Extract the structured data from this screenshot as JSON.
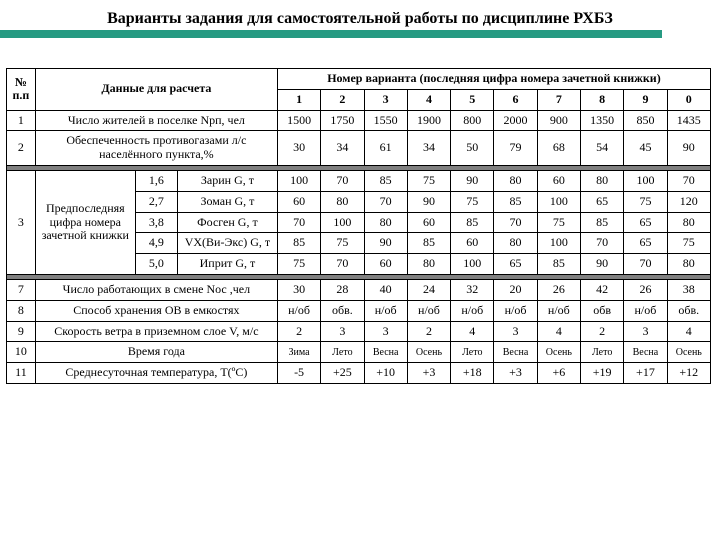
{
  "title": "Варианты задания для самостоятельной работы по дисциплине РХБЗ",
  "h": {
    "npp": "№ п.п",
    "data": "Данные для расчета",
    "variant": "Номер варианта (последняя цифра номера зачетной книжки)",
    "cols": [
      "1",
      "2",
      "3",
      "4",
      "5",
      "6",
      "7",
      "8",
      "9",
      "0"
    ]
  },
  "r1": {
    "n": "1",
    "label": "Число жителей в поселке Nрп, чел",
    "v": [
      "1500",
      "1750",
      "1550",
      "1900",
      "800",
      "2000",
      "900",
      "1350",
      "850",
      "1435"
    ]
  },
  "r2": {
    "n": "2",
    "label": "Обеспеченность противогазами л/с населённого пункта,%",
    "v": [
      "30",
      "34",
      "61",
      "34",
      "50",
      "79",
      "68",
      "54",
      "45",
      "90"
    ]
  },
  "r3": {
    "n": "3",
    "side": "Предпоследняя цифра номера зачетной книжки",
    "rows": [
      {
        "d": "1,6",
        "agent": "Зарин G, т",
        "v": [
          "100",
          "70",
          "85",
          "75",
          "90",
          "80",
          "60",
          "80",
          "100",
          "70"
        ]
      },
      {
        "d": "2,7",
        "agent": "Зоман G, т",
        "v": [
          "60",
          "80",
          "70",
          "90",
          "75",
          "85",
          "100",
          "65",
          "75",
          "120"
        ]
      },
      {
        "d": "3,8",
        "agent": "Фосген G, т",
        "v": [
          "70",
          "100",
          "80",
          "60",
          "85",
          "70",
          "75",
          "85",
          "65",
          "80"
        ]
      },
      {
        "d": "4,9",
        "agent": "VX(Ви-Экс) G, т",
        "v": [
          "85",
          "75",
          "90",
          "85",
          "60",
          "80",
          "100",
          "70",
          "65",
          "75"
        ]
      },
      {
        "d": "5,0",
        "agent": "Иприт  G, т",
        "v": [
          "75",
          "70",
          "60",
          "80",
          "100",
          "65",
          "85",
          "90",
          "70",
          "80"
        ]
      }
    ]
  },
  "r7": {
    "n": "7",
    "label": "Число работающих в  смене Nос ,чел",
    "v": [
      "30",
      "28",
      "40",
      "24",
      "32",
      "20",
      "26",
      "42",
      "26",
      "38"
    ]
  },
  "r8": {
    "n": "8",
    "label": "Способ хранения ОВ в емкостях",
    "v": [
      "н/об",
      "обв.",
      "н/об",
      "н/об",
      "н/об",
      "н/об",
      "н/об",
      "обв",
      "н/об",
      "обв."
    ]
  },
  "r9": {
    "n": "9",
    "label": "Скорость ветра в приземном слое V, м/с",
    "v": [
      "2",
      "3",
      "3",
      "2",
      "4",
      "3",
      "4",
      "2",
      "3",
      "4"
    ]
  },
  "r10": {
    "n": "10",
    "label": "Время года",
    "v": [
      "Зима",
      "Лето",
      "Весна",
      "Осень",
      "Лето",
      "Весна",
      "Осень",
      "Лето",
      "Весна",
      "Осень"
    ]
  },
  "r11": {
    "n": "11",
    "label": "Среднесуточная температура, Т(ºС)",
    "v": [
      "-5",
      "+25",
      "+10",
      "+3",
      "+18",
      "+3",
      "+6",
      "+19",
      "+17",
      "+12"
    ]
  }
}
